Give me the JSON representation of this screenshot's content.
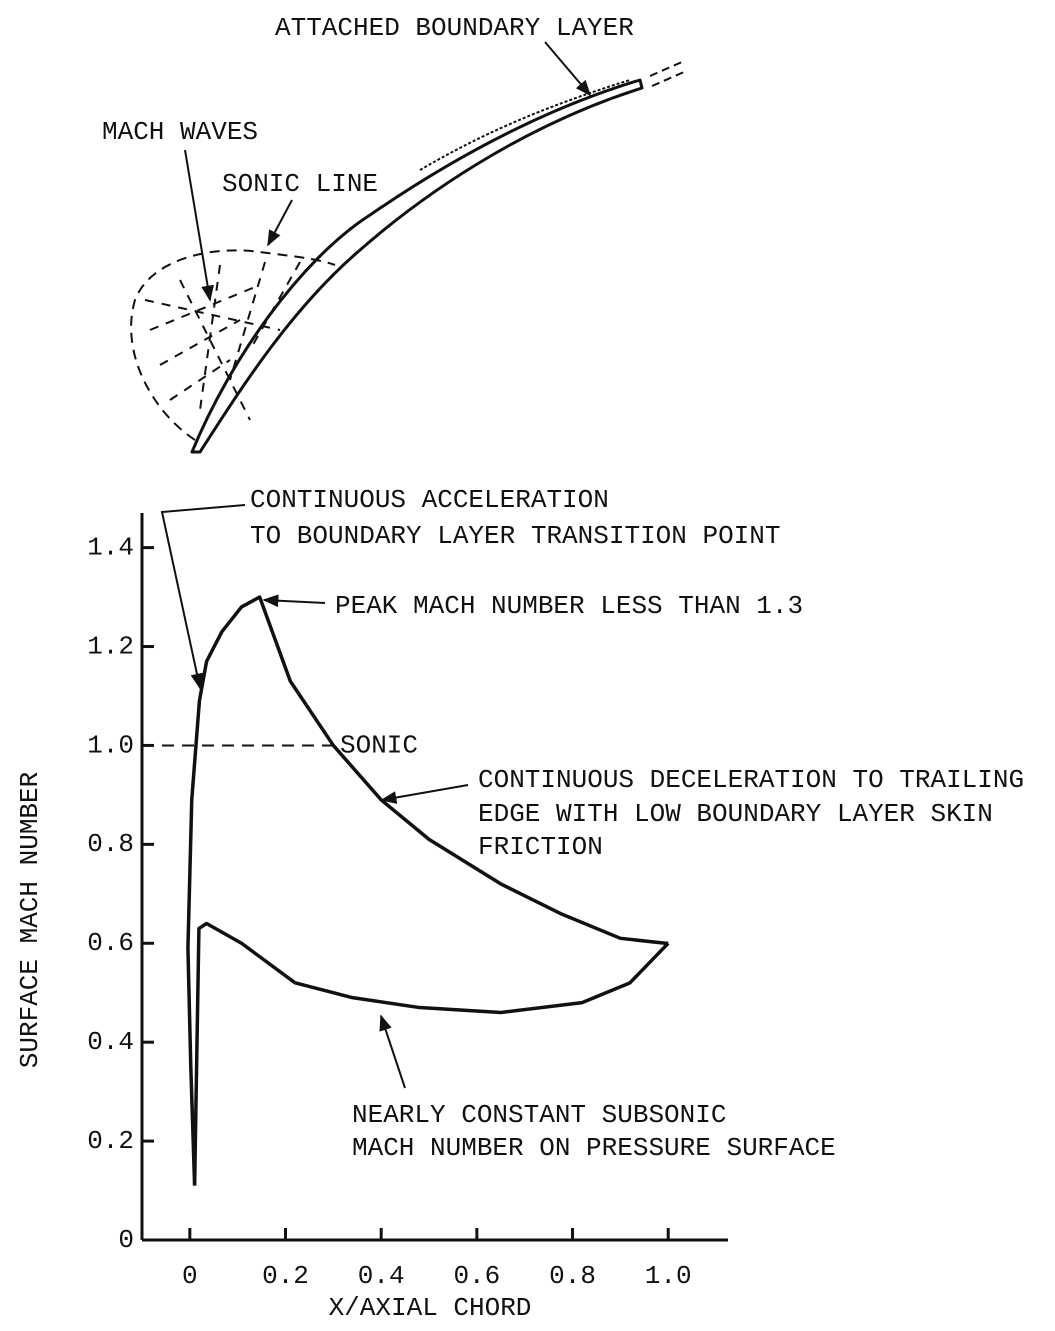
{
  "diagram": {
    "labels": [
      "ATTACHED BOUNDARY LAYER",
      "MACH WAVES",
      "SONIC LINE"
    ]
  },
  "chart_data": {
    "type": "line",
    "xlabel": "X/AXIAL CHORD",
    "ylabel": "SURFACE MACH NUMBER",
    "xlim": [
      -0.1,
      1.125
    ],
    "ylim": [
      0,
      1.47
    ],
    "xticks": [
      0,
      0.2,
      0.4,
      0.6,
      0.8,
      {
        "value": 1,
        "label": "1.0"
      }
    ],
    "yticks": [
      0,
      0.2,
      0.4,
      0.6,
      0.8,
      {
        "value": 1,
        "label": "1.0"
      },
      1.2,
      1.4
    ],
    "series": [
      {
        "color": "#111111",
        "x": [
          0.01,
          0.002,
          -0.004,
          0.004,
          0.02,
          0.035,
          0.067,
          0.108,
          0.146,
          0.21,
          0.3,
          0.4,
          0.5,
          0.65,
          0.775,
          0.9,
          0.994,
          1.0
        ],
        "values": [
          0.11,
          0.35,
          0.59,
          0.89,
          1.09,
          1.17,
          1.23,
          1.28,
          1.3,
          1.13,
          1.0,
          0.89,
          0.81,
          0.72,
          0.66,
          0.61,
          0.6,
          0.6
        ]
      },
      {
        "color": "#111111",
        "x": [
          0.01,
          0.015,
          0.019,
          0.035,
          0.108,
          0.22,
          0.34,
          0.48,
          0.65,
          0.82,
          0.92,
          0.98,
          1.0
        ],
        "values": [
          0.11,
          0.4,
          0.63,
          0.64,
          0.6,
          0.52,
          0.49,
          0.47,
          0.46,
          0.48,
          0.52,
          0.58,
          0.6
        ]
      }
    ],
    "reference_line": {
      "value": 1,
      "label": "SONIC"
    },
    "annotations": [
      {
        "lines": [
          "CONTINUOUS ACCELERATION",
          "TO BOUNDARY LAYER TRANSITION POINT"
        ]
      },
      {
        "lines": [
          "PEAK MACH NUMBER LESS THAN 1.3"
        ]
      },
      {
        "lines": [
          "CONTINUOUS DECELERATION TO TRAILING",
          "EDGE WITH LOW BOUNDARY LAYER SKIN",
          "FRICTION"
        ]
      },
      {
        "lines": [
          "NEARLY CONSTANT SUBSONIC",
          "MACH NUMBER ON PRESSURE SURFACE"
        ]
      }
    ]
  }
}
